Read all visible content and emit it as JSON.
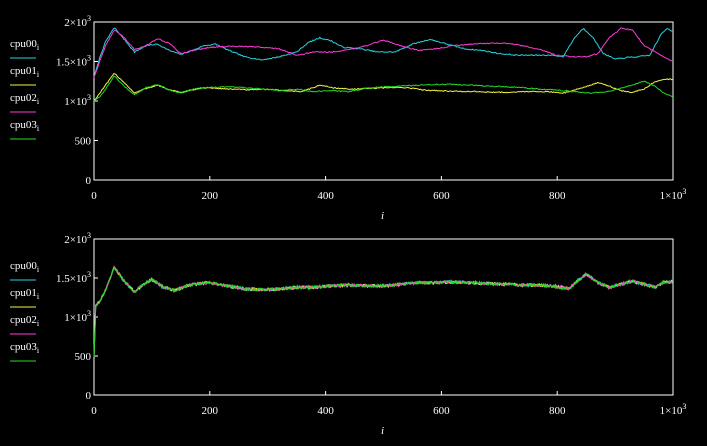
{
  "chart_data": [
    {
      "type": "line",
      "xlabel": "i",
      "ylabel": "",
      "xlim": [
        0,
        1000
      ],
      "ylim": [
        0,
        2000
      ],
      "xticks": [
        {
          "value": 0,
          "label": "0"
        },
        {
          "value": 200,
          "label": "200"
        },
        {
          "value": 400,
          "label": "400"
        },
        {
          "value": 600,
          "label": "600"
        },
        {
          "value": 800,
          "label": "800"
        },
        {
          "value": 1000,
          "label": "1×10",
          "sup": "3"
        }
      ],
      "yticks": [
        {
          "value": 0,
          "label": "0"
        },
        {
          "value": 500,
          "label": "500"
        },
        {
          "value": 1000,
          "label": "1×10",
          "sup": "3"
        },
        {
          "value": 1500,
          "label": "1.5×10",
          "sup": "3"
        },
        {
          "value": 2000,
          "label": "2×10",
          "sup": "3"
        }
      ],
      "grid": false,
      "legend": "left",
      "series": [
        {
          "name": "cpu00",
          "sub": "i",
          "color": "#22d3e0",
          "x": [
            0,
            10,
            20,
            35,
            50,
            70,
            90,
            110,
            130,
            150,
            170,
            190,
            210,
            230,
            260,
            290,
            320,
            350,
            370,
            390,
            410,
            430,
            460,
            490,
            520,
            550,
            580,
            610,
            640,
            670,
            700,
            730,
            760,
            790,
            810,
            830,
            845,
            860,
            880,
            900,
            920,
            940,
            960,
            980,
            990,
            1000
          ],
          "y": [
            1300,
            1550,
            1750,
            1930,
            1800,
            1620,
            1700,
            1720,
            1640,
            1590,
            1640,
            1700,
            1720,
            1650,
            1560,
            1520,
            1560,
            1620,
            1740,
            1800,
            1760,
            1680,
            1660,
            1620,
            1620,
            1720,
            1780,
            1720,
            1660,
            1640,
            1600,
            1580,
            1580,
            1580,
            1560,
            1800,
            1920,
            1820,
            1600,
            1530,
            1550,
            1560,
            1580,
            1850,
            1920,
            1880
          ]
        },
        {
          "name": "cpu01",
          "sub": "i",
          "color": "#f5f542",
          "x": [
            0,
            10,
            20,
            35,
            50,
            70,
            90,
            110,
            130,
            150,
            170,
            190,
            210,
            240,
            270,
            300,
            330,
            360,
            390,
            420,
            450,
            480,
            510,
            540,
            570,
            600,
            630,
            660,
            690,
            720,
            750,
            780,
            810,
            840,
            870,
            890,
            910,
            930,
            950,
            970,
            985,
            1000
          ],
          "y": [
            1000,
            1100,
            1200,
            1350,
            1250,
            1100,
            1160,
            1200,
            1140,
            1110,
            1140,
            1170,
            1160,
            1150,
            1140,
            1150,
            1130,
            1120,
            1200,
            1160,
            1150,
            1160,
            1170,
            1170,
            1140,
            1130,
            1120,
            1120,
            1110,
            1110,
            1120,
            1120,
            1100,
            1160,
            1230,
            1190,
            1130,
            1110,
            1150,
            1250,
            1280,
            1270
          ]
        },
        {
          "name": "cpu02",
          "sub": "i",
          "color": "#ff3ad8",
          "x": [
            0,
            10,
            20,
            35,
            50,
            70,
            90,
            110,
            130,
            150,
            170,
            200,
            230,
            260,
            290,
            320,
            350,
            380,
            410,
            440,
            470,
            500,
            530,
            560,
            590,
            620,
            650,
            680,
            710,
            740,
            770,
            800,
            830,
            850,
            870,
            890,
            910,
            930,
            950,
            970,
            985,
            1000
          ],
          "y": [
            1300,
            1500,
            1700,
            1900,
            1820,
            1650,
            1700,
            1790,
            1730,
            1600,
            1640,
            1680,
            1690,
            1690,
            1680,
            1660,
            1580,
            1620,
            1620,
            1650,
            1700,
            1770,
            1700,
            1640,
            1660,
            1700,
            1720,
            1730,
            1730,
            1700,
            1650,
            1580,
            1560,
            1560,
            1600,
            1800,
            1920,
            1900,
            1700,
            1620,
            1550,
            1500
          ]
        },
        {
          "name": "cpu03",
          "sub": "i",
          "color": "#22dd22",
          "x": [
            0,
            10,
            20,
            35,
            50,
            70,
            90,
            110,
            130,
            150,
            170,
            200,
            230,
            260,
            290,
            320,
            350,
            380,
            410,
            440,
            470,
            500,
            530,
            560,
            590,
            620,
            650,
            680,
            710,
            740,
            770,
            800,
            830,
            860,
            890,
            920,
            950,
            970,
            985,
            1000
          ],
          "y": [
            1000,
            1050,
            1150,
            1320,
            1200,
            1080,
            1170,
            1210,
            1140,
            1100,
            1150,
            1170,
            1180,
            1170,
            1150,
            1130,
            1150,
            1120,
            1130,
            1120,
            1160,
            1180,
            1190,
            1200,
            1210,
            1210,
            1200,
            1190,
            1180,
            1170,
            1150,
            1140,
            1120,
            1100,
            1120,
            1180,
            1250,
            1180,
            1100,
            1050
          ]
        }
      ]
    },
    {
      "type": "line",
      "xlabel": "i",
      "ylabel": "",
      "xlim": [
        0,
        1000
      ],
      "ylim": [
        0,
        2000
      ],
      "xticks": [
        {
          "value": 0,
          "label": "0"
        },
        {
          "value": 200,
          "label": "200"
        },
        {
          "value": 400,
          "label": "400"
        },
        {
          "value": 600,
          "label": "600"
        },
        {
          "value": 800,
          "label": "800"
        },
        {
          "value": 1000,
          "label": "1×10",
          "sup": "3"
        }
      ],
      "yticks": [
        {
          "value": 0,
          "label": "0"
        },
        {
          "value": 500,
          "label": "500"
        },
        {
          "value": 1000,
          "label": "1×10",
          "sup": "3"
        },
        {
          "value": 1500,
          "label": "1.5×10",
          "sup": "3"
        },
        {
          "value": 2000,
          "label": "2×10",
          "sup": "3"
        }
      ],
      "grid": false,
      "legend": "left",
      "base": {
        "x": [
          0,
          3,
          10,
          20,
          35,
          50,
          70,
          85,
          100,
          120,
          140,
          160,
          180,
          200,
          230,
          260,
          290,
          320,
          350,
          380,
          410,
          440,
          470,
          500,
          530,
          560,
          590,
          620,
          650,
          680,
          710,
          740,
          770,
          800,
          820,
          835,
          850,
          870,
          890,
          910,
          930,
          950,
          970,
          985,
          1000
        ],
        "y": [
          500,
          1150,
          1200,
          1350,
          1640,
          1480,
          1320,
          1420,
          1480,
          1380,
          1340,
          1400,
          1430,
          1440,
          1400,
          1360,
          1350,
          1360,
          1380,
          1380,
          1400,
          1410,
          1400,
          1400,
          1420,
          1440,
          1440,
          1450,
          1440,
          1430,
          1420,
          1410,
          1410,
          1390,
          1360,
          1460,
          1550,
          1440,
          1380,
          1420,
          1460,
          1420,
          1380,
          1450,
          1450
        ]
      },
      "series": [
        {
          "name": "cpu00",
          "sub": "i",
          "color": "#22d3e0",
          "seed": 11
        },
        {
          "name": "cpu01",
          "sub": "i",
          "color": "#f5f542",
          "seed": 23
        },
        {
          "name": "cpu02",
          "sub": "i",
          "color": "#ff3ad8",
          "seed": 37
        },
        {
          "name": "cpu03",
          "sub": "i",
          "color": "#22dd22",
          "seed": 53
        }
      ]
    }
  ]
}
